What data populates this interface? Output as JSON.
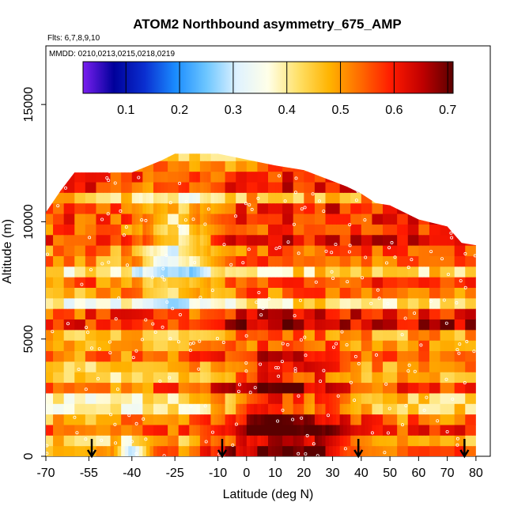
{
  "chart_data": {
    "type": "heatmap",
    "title": "ATOM2 Northbound asymmetry_675_AMP",
    "flights_label": "Flts: 6,7,8,9,10",
    "dates_label": "MMDD: 0210,0213,0215,0218,0219",
    "xlabel": "Latitude (deg N)",
    "ylabel": "Altitude (m)",
    "xlim": [
      -70,
      85
    ],
    "ylim": [
      0,
      17500
    ],
    "x_ticks": [
      -70,
      -55,
      -40,
      -25,
      -10,
      0,
      10,
      20,
      30,
      40,
      50,
      60,
      70,
      80
    ],
    "y_ticks": [
      0,
      5000,
      10000,
      15000
    ],
    "colorbar": {
      "range": [
        0.02,
        0.71
      ],
      "ticks": [
        0.1,
        0.2,
        0.3,
        0.4,
        0.5,
        0.6,
        0.7
      ],
      "colors": [
        "#7a1ff0",
        "#00009a",
        "#0a2fd0",
        "#1a8cff",
        "#6dc6ff",
        "#dff2ff",
        "#ffffe8",
        "#ffe066",
        "#ffb300",
        "#ff6a00",
        "#ff1a00",
        "#c00000",
        "#5a0000"
      ]
    },
    "flight_start_markers_lat": [
      -54,
      -8.5,
      39,
      76
    ],
    "data_extent": {
      "lat_range": [
        -70,
        80
      ],
      "altitude_top_by_lat": [
        [
          -70,
          10400
        ],
        [
          -65,
          11300
        ],
        [
          -60,
          12100
        ],
        [
          -40,
          12100
        ],
        [
          -30,
          12600
        ],
        [
          -25,
          12900
        ],
        [
          -10,
          12900
        ],
        [
          10,
          12400
        ],
        [
          20,
          12200
        ],
        [
          35,
          11500
        ],
        [
          40,
          11200
        ],
        [
          45,
          10800
        ],
        [
          50,
          10700
        ],
        [
          60,
          10100
        ],
        [
          70,
          9800
        ],
        [
          75,
          9100
        ],
        [
          80,
          9000
        ]
      ]
    },
    "field_description_notes": {
      "lower_tropics_max": {
        "lat_range": [
          -5,
          30
        ],
        "alt_range": [
          0,
          4500
        ],
        "value": 0.65
      },
      "upper_southern_min": {
        "lat_range": [
          -35,
          -15
        ],
        "alt_range": [
          7000,
          11000
        ],
        "value": 0.32
      },
      "surface_min": {
        "lat_range": [
          -45,
          -35
        ],
        "alt_range": [
          0,
          500
        ],
        "value": 0.15
      }
    }
  }
}
